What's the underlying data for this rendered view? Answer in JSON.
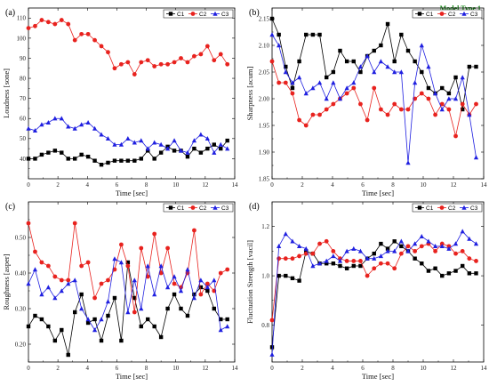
{
  "figure": {
    "annotation": "Model Type 1",
    "colors": {
      "C1": "#000000",
      "C2": "#e8221e",
      "C3": "#1f1fe0"
    }
  },
  "chart_data": [
    {
      "id": "a",
      "panel_label": "(a)",
      "type": "line",
      "xlabel": "Time [sec]",
      "ylabel": "Loudness [sone]",
      "xlim": [
        0,
        14
      ],
      "ylim": [
        30,
        115
      ],
      "xticks": [
        0,
        2,
        4,
        6,
        8,
        10,
        12,
        14
      ],
      "yticks": [
        40,
        50,
        60,
        70,
        80,
        90,
        100,
        110
      ],
      "legend_position": "top-right",
      "x": [
        0,
        0.45,
        0.9,
        1.35,
        1.8,
        2.25,
        2.7,
        3.15,
        3.6,
        4.05,
        4.5,
        4.95,
        5.4,
        5.85,
        6.3,
        6.75,
        7.2,
        7.65,
        8.1,
        8.55,
        9.0,
        9.45,
        9.9,
        10.35,
        10.8,
        11.25,
        11.7,
        12.15,
        12.6,
        13.05,
        13.5
      ],
      "series": [
        {
          "name": "C1",
          "marker": "square",
          "values": [
            40,
            40,
            42,
            43,
            44,
            43,
            40,
            40,
            42,
            41,
            39,
            37,
            38,
            39,
            39,
            39,
            39,
            40,
            44,
            40,
            43,
            46,
            44,
            44,
            41,
            45,
            43,
            45,
            47,
            45,
            49
          ]
        },
        {
          "name": "C2",
          "marker": "circle",
          "values": [
            105,
            106,
            109,
            108,
            107,
            109,
            107,
            99,
            102,
            102,
            99,
            96,
            93,
            85,
            87,
            88,
            82,
            88,
            89,
            86,
            87,
            87,
            88,
            90,
            88,
            91,
            92,
            96,
            89,
            92,
            87
          ]
        },
        {
          "name": "C3",
          "marker": "triangle",
          "values": [
            55,
            54,
            57,
            58,
            60,
            60,
            56,
            55,
            57,
            58,
            55,
            52,
            50,
            47,
            47,
            50,
            48,
            49,
            45,
            48,
            47,
            45,
            49,
            44,
            43,
            49,
            52,
            50,
            43,
            47,
            45
          ]
        }
      ]
    },
    {
      "id": "b",
      "panel_label": "(b)",
      "type": "line",
      "xlabel": "Time [sec]",
      "ylabel": "Sharpness [acum]",
      "xlim": [
        0,
        14
      ],
      "ylim": [
        1.85,
        2.17
      ],
      "xticks": [
        0,
        2,
        4,
        6,
        8,
        10,
        12,
        14
      ],
      "yticks": [
        1.85,
        1.9,
        1.95,
        2.0,
        2.05,
        2.1,
        2.15
      ],
      "legend_position": "top-right",
      "x": [
        0,
        0.45,
        0.9,
        1.35,
        1.8,
        2.25,
        2.7,
        3.15,
        3.6,
        4.05,
        4.5,
        4.95,
        5.4,
        5.85,
        6.3,
        6.75,
        7.2,
        7.65,
        8.1,
        8.55,
        9.0,
        9.45,
        9.9,
        10.35,
        10.8,
        11.25,
        11.7,
        12.15,
        12.6,
        13.05,
        13.5
      ],
      "series": [
        {
          "name": "C1",
          "marker": "square",
          "values": [
            2.15,
            2.12,
            2.06,
            2.02,
            2.07,
            2.12,
            2.12,
            2.12,
            2.04,
            2.05,
            2.09,
            2.07,
            2.07,
            2.05,
            2.08,
            2.09,
            2.1,
            2.14,
            2.07,
            2.12,
            2.09,
            2.07,
            2.05,
            2.02,
            2.01,
            2.02,
            2.01,
            2.04,
            1.98,
            2.06,
            2.06
          ]
        },
        {
          "name": "C2",
          "marker": "circle",
          "values": [
            2.07,
            2.03,
            2.03,
            2.01,
            1.96,
            1.95,
            1.97,
            1.97,
            1.98,
            1.99,
            2.0,
            2.01,
            2.02,
            1.99,
            1.96,
            2.02,
            1.98,
            1.97,
            1.99,
            1.98,
            1.98,
            2.0,
            2.01,
            2.0,
            1.97,
            1.99,
            1.98,
            1.93,
            1.99,
            1.97,
            1.99
          ]
        },
        {
          "name": "C3",
          "marker": "triangle",
          "values": [
            2.12,
            2.1,
            2.05,
            2.03,
            2.04,
            2.01,
            2.02,
            2.03,
            2.0,
            2.03,
            2.0,
            2.02,
            2.03,
            2.06,
            2.08,
            2.05,
            2.07,
            2.06,
            2.05,
            2.05,
            1.88,
            2.03,
            2.1,
            2.06,
            2.01,
            1.98,
            2.0,
            2.0,
            2.04,
            1.97,
            1.89
          ]
        }
      ]
    },
    {
      "id": "c",
      "panel_label": "(c)",
      "type": "line",
      "xlabel": "Time [sec]",
      "ylabel": "Roughness [asper]",
      "xlim": [
        0,
        14
      ],
      "ylim": [
        0.15,
        0.6
      ],
      "xticks": [
        0,
        2,
        4,
        6,
        8,
        10,
        12,
        14
      ],
      "yticks": [
        0.2,
        0.3,
        0.4,
        0.5
      ],
      "legend_position": "top-right",
      "x": [
        0,
        0.45,
        0.9,
        1.35,
        1.8,
        2.25,
        2.7,
        3.15,
        3.6,
        4.05,
        4.5,
        4.95,
        5.4,
        5.85,
        6.3,
        6.75,
        7.2,
        7.65,
        8.1,
        8.55,
        9.0,
        9.45,
        9.9,
        10.35,
        10.8,
        11.25,
        11.7,
        12.15,
        12.6,
        13.05,
        13.5
      ],
      "series": [
        {
          "name": "C1",
          "marker": "square",
          "values": [
            0.25,
            0.28,
            0.27,
            0.25,
            0.21,
            0.24,
            0.17,
            0.29,
            0.34,
            0.26,
            0.27,
            0.21,
            0.28,
            0.33,
            0.21,
            0.43,
            0.33,
            0.25,
            0.27,
            0.25,
            0.22,
            0.3,
            0.34,
            0.3,
            0.28,
            0.34,
            0.36,
            0.35,
            0.3,
            0.27,
            0.27
          ]
        },
        {
          "name": "C2",
          "marker": "circle",
          "values": [
            0.54,
            0.46,
            0.43,
            0.42,
            0.39,
            0.38,
            0.38,
            0.54,
            0.42,
            0.43,
            0.33,
            0.37,
            0.38,
            0.41,
            0.48,
            0.42,
            0.29,
            0.47,
            0.39,
            0.51,
            0.4,
            0.47,
            0.37,
            0.36,
            0.4,
            0.52,
            0.34,
            0.37,
            0.35,
            0.4,
            0.41
          ]
        },
        {
          "name": "C3",
          "marker": "triangle",
          "values": [
            0.37,
            0.41,
            0.34,
            0.36,
            0.33,
            0.35,
            0.37,
            0.38,
            0.3,
            0.27,
            0.24,
            0.27,
            0.32,
            0.44,
            0.43,
            0.29,
            0.38,
            0.3,
            0.42,
            0.34,
            0.42,
            0.36,
            0.39,
            0.35,
            0.41,
            0.33,
            0.38,
            0.36,
            0.38,
            0.24,
            0.25
          ]
        }
      ]
    },
    {
      "id": "d",
      "panel_label": "(d)",
      "type": "line",
      "xlabel": "Time [sec]",
      "ylabel": "Fluctuation Strength [vacil]",
      "xlim": [
        0,
        14
      ],
      "ylim": [
        0.65,
        1.3
      ],
      "xticks": [
        0,
        2,
        4,
        6,
        8,
        10,
        12,
        14
      ],
      "yticks": [
        0.8,
        1.0,
        1.2
      ],
      "legend_position": "top-right",
      "x": [
        0,
        0.45,
        0.9,
        1.35,
        1.8,
        2.25,
        2.7,
        3.15,
        3.6,
        4.05,
        4.5,
        4.95,
        5.4,
        5.85,
        6.3,
        6.75,
        7.2,
        7.65,
        8.1,
        8.55,
        9.0,
        9.45,
        9.9,
        10.35,
        10.8,
        11.25,
        11.7,
        12.15,
        12.6,
        13.05,
        13.5
      ],
      "series": [
        {
          "name": "C1",
          "marker": "square",
          "values": [
            0.71,
            1.0,
            1.0,
            0.99,
            0.98,
            1.1,
            1.09,
            1.05,
            1.05,
            1.05,
            1.04,
            1.03,
            1.04,
            1.04,
            1.07,
            1.09,
            1.13,
            1.11,
            1.14,
            1.12,
            1.1,
            1.07,
            1.05,
            1.02,
            1.03,
            1.0,
            1.01,
            1.02,
            1.04,
            1.01,
            1.01
          ]
        },
        {
          "name": "C2",
          "marker": "circle",
          "values": [
            0.82,
            1.07,
            1.07,
            1.07,
            1.08,
            1.09,
            1.09,
            1.13,
            1.14,
            1.1,
            1.07,
            1.06,
            1.06,
            1.06,
            1.0,
            1.03,
            1.05,
            1.05,
            1.03,
            1.09,
            1.12,
            1.1,
            1.12,
            1.13,
            1.1,
            1.13,
            1.12,
            1.09,
            1.1,
            1.07,
            1.06
          ]
        },
        {
          "name": "C3",
          "marker": "triangle",
          "values": [
            0.68,
            1.12,
            1.17,
            1.14,
            1.12,
            1.11,
            1.04,
            1.05,
            1.06,
            1.08,
            1.06,
            1.1,
            1.11,
            1.1,
            1.07,
            1.07,
            1.08,
            1.1,
            1.1,
            1.14,
            1.1,
            1.13,
            1.16,
            1.14,
            1.12,
            1.12,
            1.11,
            1.13,
            1.18,
            1.15,
            1.13
          ]
        }
      ]
    }
  ]
}
